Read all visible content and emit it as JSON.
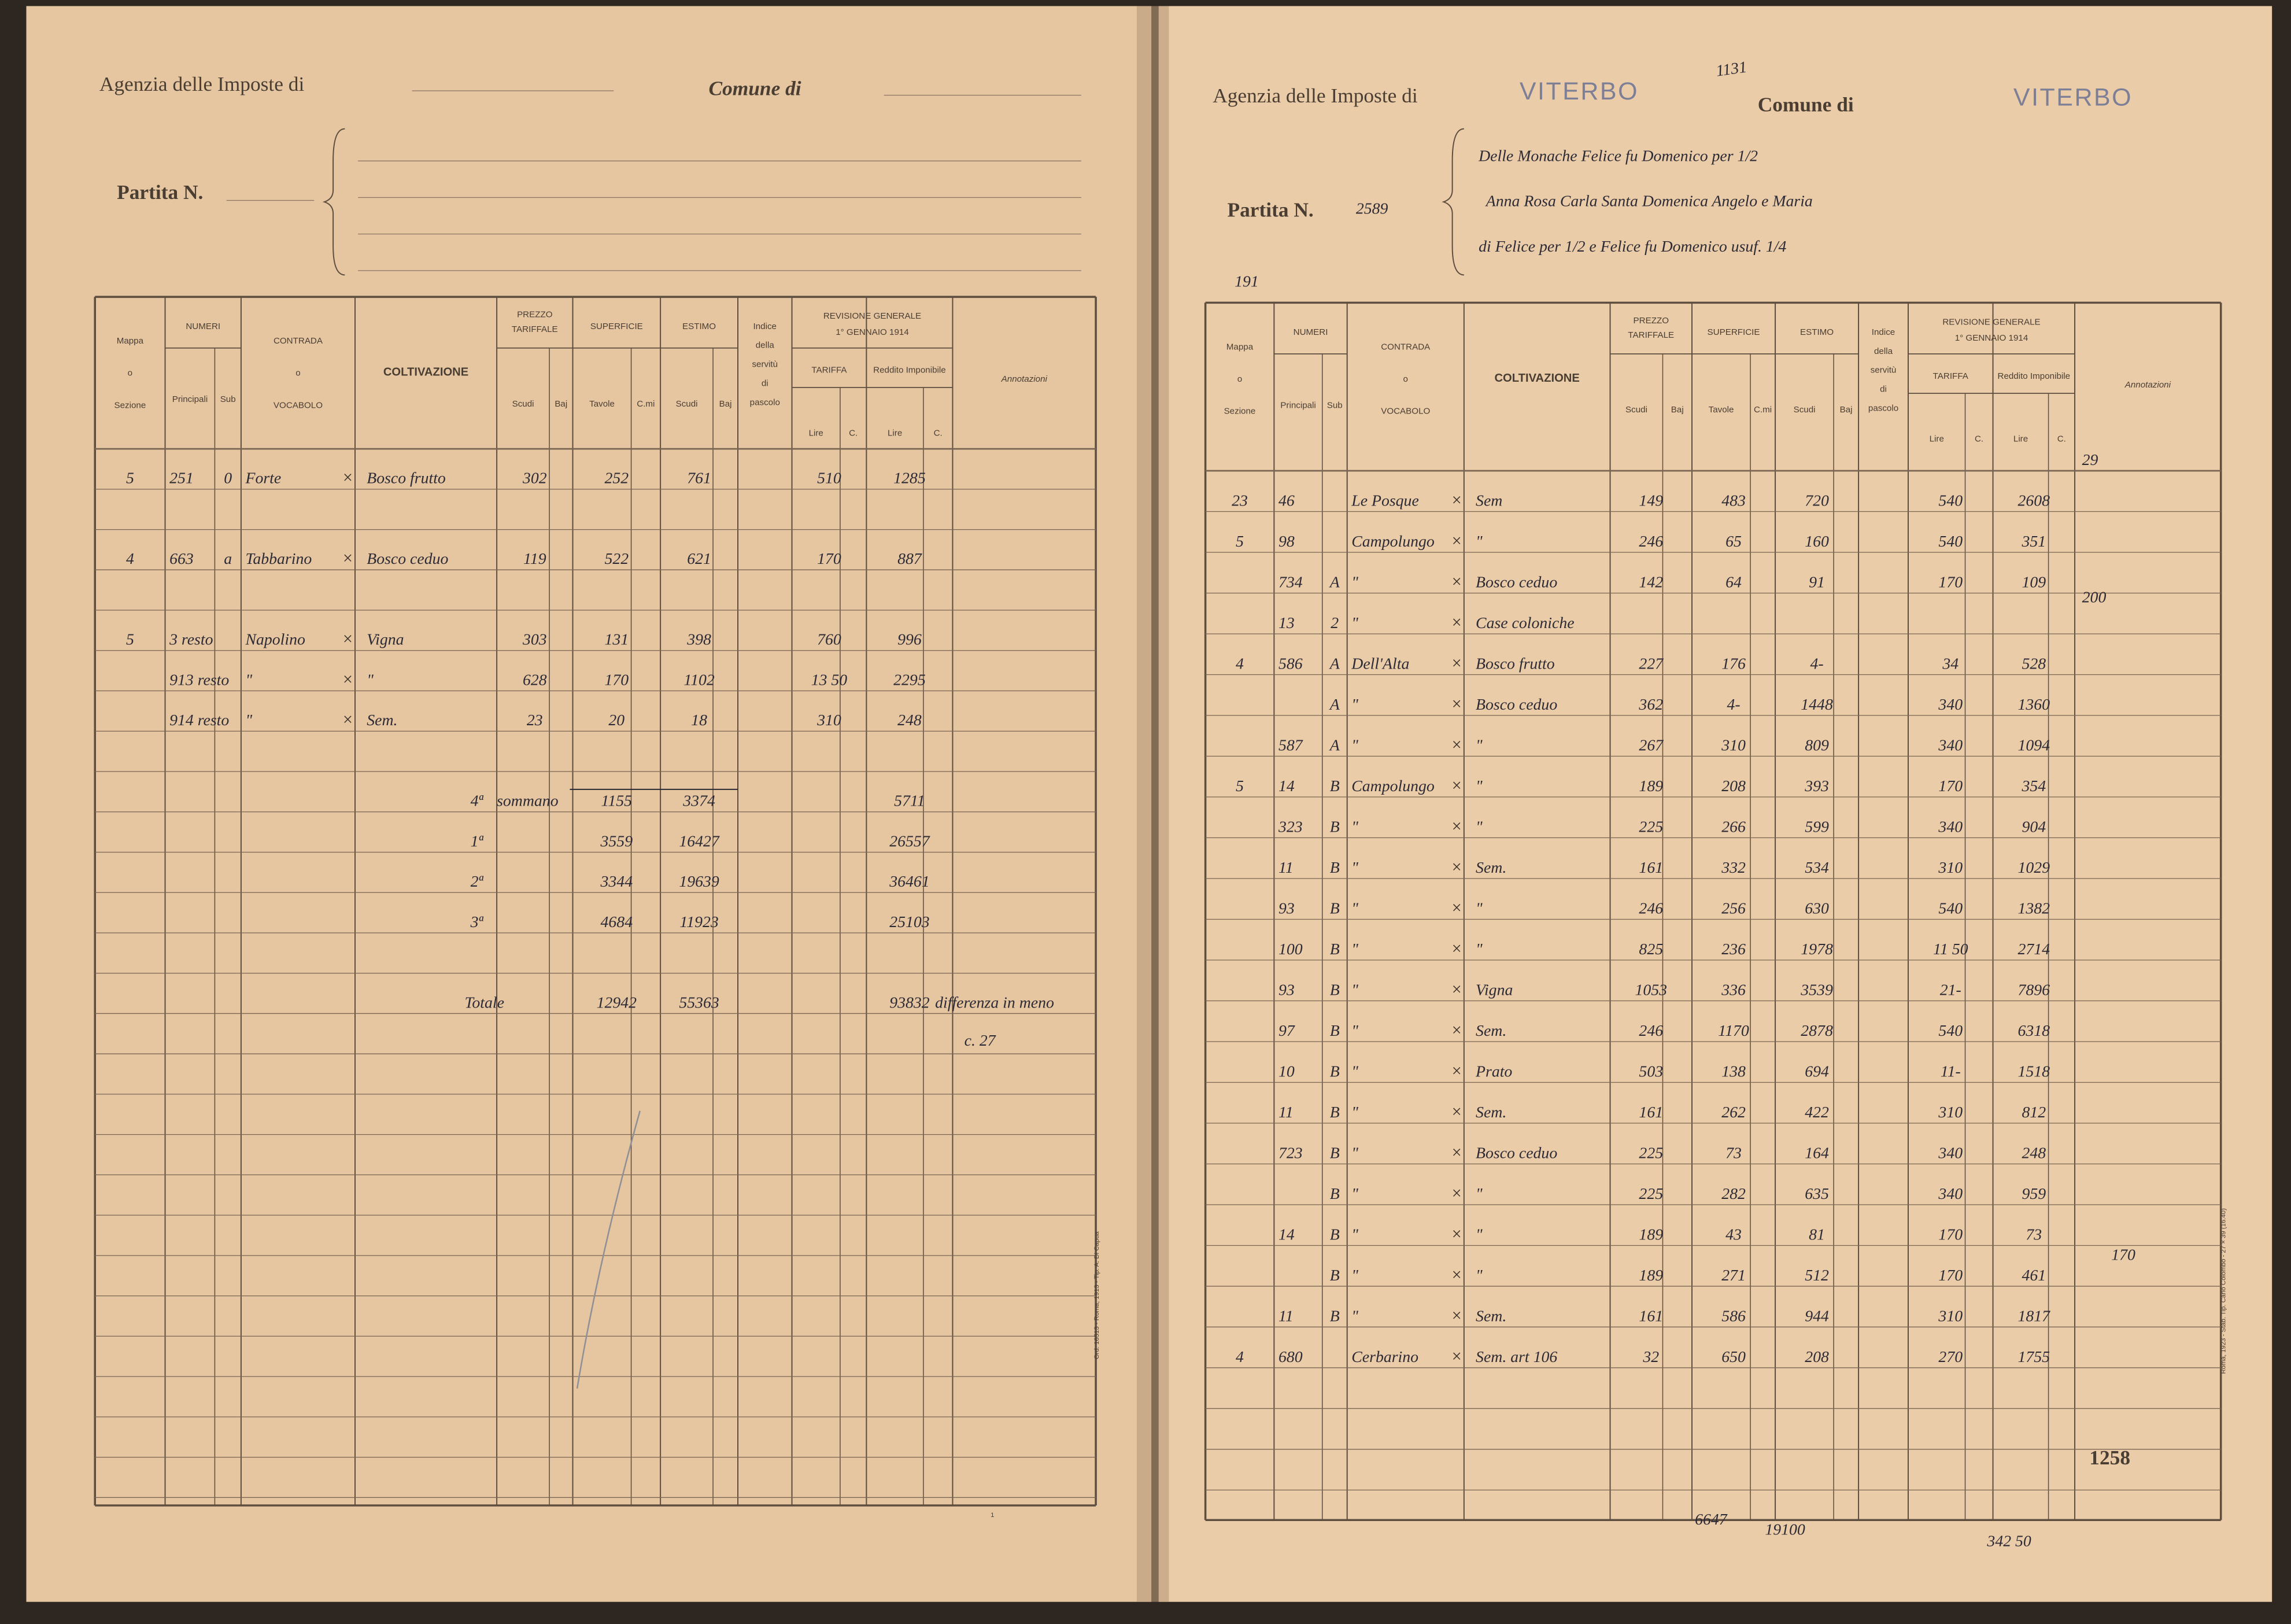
{
  "table_header": {
    "mappa": [
      "Mappa",
      "o",
      "Sezione"
    ],
    "numeri": "NUMERI",
    "principali": "Principali",
    "sub": "Sub",
    "contrada": [
      "CONTRADA",
      "o",
      "VOCABOLO"
    ],
    "coltivazione": "COLTIVAZIONE",
    "prezzo": [
      "PREZZO",
      "TARIFFALE"
    ],
    "scudi": "Scudi",
    "baj": "Baj",
    "superficie": "SUPERFICIE",
    "tavole": "Tavole",
    "cmi": "C.mi",
    "estimo": "ESTIMO",
    "indice": [
      "Indice",
      "della",
      "servitù",
      "di",
      "pascolo"
    ],
    "revisione": [
      "REVISIONE GENERALE",
      "1° GENNAIO 1914"
    ],
    "tariffa": "TARIFFA",
    "reddito": "Reddito Imponibile",
    "lire": "Lire",
    "c": "C.",
    "annotazioni": "Annotazioni"
  },
  "left_page": {
    "agency_label": "Agenzia delle Imposte di",
    "comune_label": "Comune di",
    "partita_label": "Partita N.",
    "rows": [
      [
        "5",
        "251",
        "0",
        "Forte",
        "Bosco frutto",
        "302",
        "252",
        "761",
        "510",
        "1285"
      ],
      [
        "4",
        "663",
        "a",
        "Tabbarino",
        "Bosco ceduo",
        "119",
        "522",
        "621",
        "170",
        "887"
      ],
      [
        "5",
        "3 resto",
        null,
        "Napolino",
        "Vigna",
        "303",
        "131",
        "398",
        "760",
        "996"
      ],
      [
        null,
        "913 resto",
        null,
        "\"",
        "\"",
        "628",
        "170",
        "1102",
        "13 50",
        "2295"
      ],
      [
        null,
        "914 resto",
        null,
        "\"",
        "Sem.",
        "23",
        "20",
        "18",
        "310",
        "248"
      ]
    ],
    "summary": [
      [
        "4ª",
        "sommano",
        "1155",
        "3374",
        "5711"
      ],
      [
        "1ª",
        null,
        "3559",
        "16427",
        "26557"
      ],
      [
        "2ª",
        null,
        "3344",
        "19639",
        "36461"
      ],
      [
        "3ª",
        null,
        "4684",
        "11923",
        "25103"
      ]
    ],
    "total": {
      "label": "Totale",
      "superficie": "12942",
      "estimo": "55363",
      "reddito": "93832",
      "note": [
        "differenza in meno",
        "c. 27"
      ]
    },
    "printer": "Ord. 16513 - Roma, 1913 - Tip. A. Di Capua",
    "folio": "1"
  },
  "right_page": {
    "agency_label": "Agenzia delle Imposte di",
    "agency_value": "VITERBO",
    "comune_label": "Comune di",
    "comune_value": "VITERBO",
    "stamp_number": "1131",
    "partita_label": "Partita N.",
    "partita_value": "2589",
    "owners": [
      "Delle Monache Felice fu Domenico per 1/2",
      "Anna Rosa Carla Santa Domenica Angelo e Maria",
      "di Felice per 1/2 e Felice fu Domenico usuf. 1/4"
    ],
    "side_note": "191",
    "rows": [
      [
        "23",
        "46",
        null,
        "Le Posque",
        "Sem",
        "149",
        "483",
        "720",
        "540",
        "2608"
      ],
      [
        "5",
        "98",
        null,
        "Campolungo",
        "\"",
        "246",
        "65",
        "160",
        "540",
        "351"
      ],
      [
        null,
        "734",
        "A",
        "\"",
        "Bosco ceduo",
        "142",
        "64",
        "91",
        "170",
        "109"
      ],
      [
        null,
        "13",
        "2",
        "\"",
        "Case coloniche",
        null,
        null,
        null,
        null,
        null
      ],
      [
        "4",
        "586",
        "A",
        "Dell'Alta",
        "Bosco frutto",
        "227",
        "176",
        "4-",
        "34",
        "528"
      ],
      [
        null,
        null,
        "A",
        "\"",
        "Bosco ceduo",
        "362",
        "4-",
        "1448",
        "340",
        "1360"
      ],
      [
        null,
        "587",
        "A",
        "\"",
        "\"",
        "267",
        "310",
        "809",
        "340",
        "1094"
      ],
      [
        "5",
        "14",
        "B",
        "Campolungo",
        "\"",
        "189",
        "208",
        "393",
        "170",
        "354"
      ],
      [
        null,
        "323",
        "B",
        "\"",
        "\"",
        "225",
        "266",
        "599",
        "340",
        "904"
      ],
      [
        null,
        "11",
        "B",
        "\"",
        "Sem.",
        "161",
        "332",
        "534",
        "310",
        "1029"
      ],
      [
        null,
        "93",
        "B",
        "\"",
        "\"",
        "246",
        "256",
        "630",
        "540",
        "1382"
      ],
      [
        null,
        "100",
        "B",
        "\"",
        "\"",
        "825",
        "236",
        "1978",
        "11 50",
        "2714"
      ],
      [
        null,
        "93",
        "B",
        "\"",
        "Vigna",
        "1053",
        "336",
        "3539",
        "21-",
        "7896"
      ],
      [
        null,
        "97",
        "B",
        "\"",
        "Sem.",
        "246",
        "1170",
        "2878",
        "540",
        "6318"
      ],
      [
        null,
        "10",
        "B",
        "\"",
        "Prato",
        "503",
        "138",
        "694",
        "11-",
        "1518"
      ],
      [
        null,
        "11",
        "B",
        "\"",
        "Sem.",
        "161",
        "262",
        "422",
        "310",
        "812"
      ],
      [
        null,
        "723",
        "B",
        "\"",
        "Bosco ceduo",
        "225",
        "73",
        "164",
        "340",
        "248"
      ],
      [
        null,
        null,
        "B",
        "\"",
        "\"",
        "225",
        "282",
        "635",
        "340",
        "959"
      ],
      [
        null,
        "14",
        "B",
        "\"",
        "\"",
        "189",
        "43",
        "81",
        "170",
        "73"
      ],
      [
        null,
        null,
        "B",
        "\"",
        "\"",
        "189",
        "271",
        "512",
        "170",
        "461"
      ],
      [
        null,
        "11",
        "B",
        "\"",
        "Sem.",
        "161",
        "586",
        "944",
        "310",
        "1817"
      ],
      [
        "4",
        "680",
        null,
        "Cerbarino",
        "Sem. art 106",
        "32",
        "650",
        "208",
        "270",
        "1755"
      ]
    ],
    "annotations": [
      "29",
      "200",
      "170"
    ],
    "totals": [
      "6647",
      "19100",
      "342 50"
    ],
    "page_number": "1258",
    "printer": "Roma, 1923 - Stab. Tip. Carlo Colombo - 27 × 39 (16.40)"
  }
}
